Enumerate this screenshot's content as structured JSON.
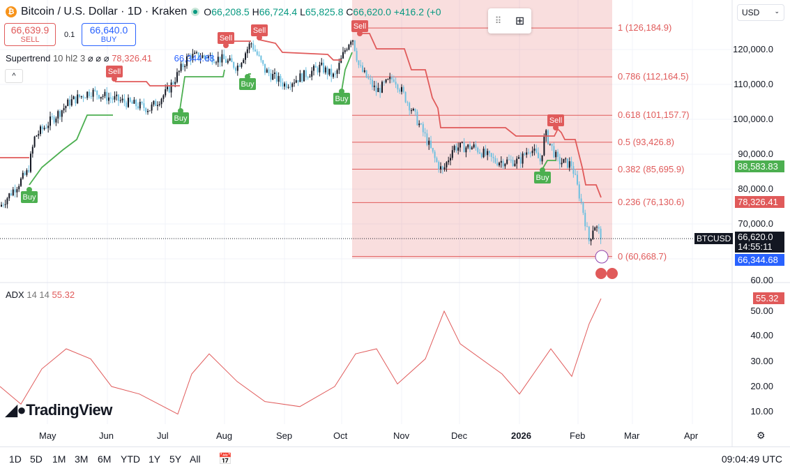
{
  "header": {
    "symbol_title": "Bitcoin / U.S. Dollar · 1D · Kraken",
    "o_label": "O",
    "o": "66,208.5",
    "h_label": "H",
    "h": "66,724.4",
    "l_label": "L",
    "l": "65,825.8",
    "c_label": "C",
    "c": "66,620.0",
    "change": "+416.2 (+0"
  },
  "trade": {
    "sell_price": "66,639.9",
    "sell_label": "SELL",
    "spread": "0.1",
    "buy_price": "66,640.0",
    "buy_label": "BUY"
  },
  "indicator": {
    "name": "Supertrend",
    "params": "10 hl2 3",
    "hidden": "⌀ ⌀ ⌀",
    "value_up": "78,326.41",
    "value_dn": "66,344.68"
  },
  "currency": "USD",
  "price_axis": [
    "120,000.0",
    "110,000.0",
    "100,000.0",
    "90,000.0",
    "80,000.0",
    "70,000.0"
  ],
  "price_tags": {
    "green": "88,583.83",
    "red": "78,326.41",
    "last": "66,620.0",
    "countdown": "14:55:11",
    "blue": "66,344.68",
    "symbol": "BTCUSD",
    "adx": "55.32"
  },
  "fib": [
    {
      "label": "1 (126,184.9)",
      "v": 126184.9
    },
    {
      "label": "0.786 (112,164.5)",
      "v": 112164.5
    },
    {
      "label": "0.618 (101,157.7)",
      "v": 101157.7
    },
    {
      "label": "0.5 (93,426.8)",
      "v": 93426.8
    },
    {
      "label": "0.382 (85,695.9)",
      "v": 85695.9
    },
    {
      "label": "0.236 (76,130.6)",
      "v": 76130.6
    },
    {
      "label": "0 (60,668.7)",
      "v": 60668.7
    }
  ],
  "signals": {
    "sell": "Sell",
    "buy": "Buy"
  },
  "adx": {
    "name": "ADX",
    "params": "14 14",
    "value": "55.32",
    "axis": [
      "60.00",
      "50.00",
      "40.00",
      "30.00",
      "20.00",
      "10.00"
    ],
    "series": [
      [
        0,
        20
      ],
      [
        30,
        13
      ],
      [
        60,
        27
      ],
      [
        95,
        35
      ],
      [
        130,
        31
      ],
      [
        160,
        20
      ],
      [
        200,
        17
      ],
      [
        255,
        9
      ],
      [
        275,
        25
      ],
      [
        300,
        33
      ],
      [
        340,
        22
      ],
      [
        380,
        14
      ],
      [
        430,
        12
      ],
      [
        480,
        20
      ],
      [
        510,
        33
      ],
      [
        540,
        35
      ],
      [
        570,
        21
      ],
      [
        610,
        31
      ],
      [
        637,
        50
      ],
      [
        660,
        37
      ],
      [
        720,
        25
      ],
      [
        745,
        17
      ],
      [
        765,
        25
      ],
      [
        790,
        35
      ],
      [
        820,
        24
      ],
      [
        845,
        45
      ],
      [
        862,
        55
      ]
    ]
  },
  "price_series": [
    [
      0,
      75000
    ],
    [
      40,
      85000
    ],
    [
      50,
      95000
    ],
    [
      100,
      105000
    ],
    [
      130,
      108000
    ],
    [
      160,
      106000
    ],
    [
      215,
      103000
    ],
    [
      240,
      108000
    ],
    [
      270,
      118000
    ],
    [
      300,
      118000
    ],
    [
      322,
      117000
    ],
    [
      340,
      115000
    ],
    [
      360,
      122000
    ],
    [
      380,
      114000
    ],
    [
      408,
      110000
    ],
    [
      430,
      112000
    ],
    [
      460,
      115000
    ],
    [
      480,
      112000
    ],
    [
      495,
      120000
    ],
    [
      505,
      124000
    ],
    [
      515,
      115000
    ],
    [
      540,
      108000
    ],
    [
      565,
      112000
    ],
    [
      590,
      103000
    ],
    [
      610,
      95000
    ],
    [
      625,
      88000
    ],
    [
      635,
      85000
    ],
    [
      650,
      92000
    ],
    [
      680,
      92000
    ],
    [
      710,
      88000
    ],
    [
      745,
      88000
    ],
    [
      760,
      92000
    ],
    [
      775,
      88000
    ],
    [
      782,
      96000
    ],
    [
      800,
      88000
    ],
    [
      820,
      87000
    ],
    [
      835,
      75000
    ],
    [
      845,
      65000
    ],
    [
      852,
      70000
    ],
    [
      862,
      66620
    ]
  ],
  "time_axis": [
    "May",
    "Jun",
    "Jul",
    "Aug",
    "Sep",
    "Oct",
    "Nov",
    "Dec",
    "2026",
    "Feb",
    "Mar",
    "Apr"
  ],
  "ranges": [
    "1D",
    "5D",
    "1M",
    "3M",
    "6M",
    "YTD",
    "1Y",
    "5Y",
    "All"
  ],
  "clock": "09:04:49 UTC",
  "brand": "TradingView"
}
